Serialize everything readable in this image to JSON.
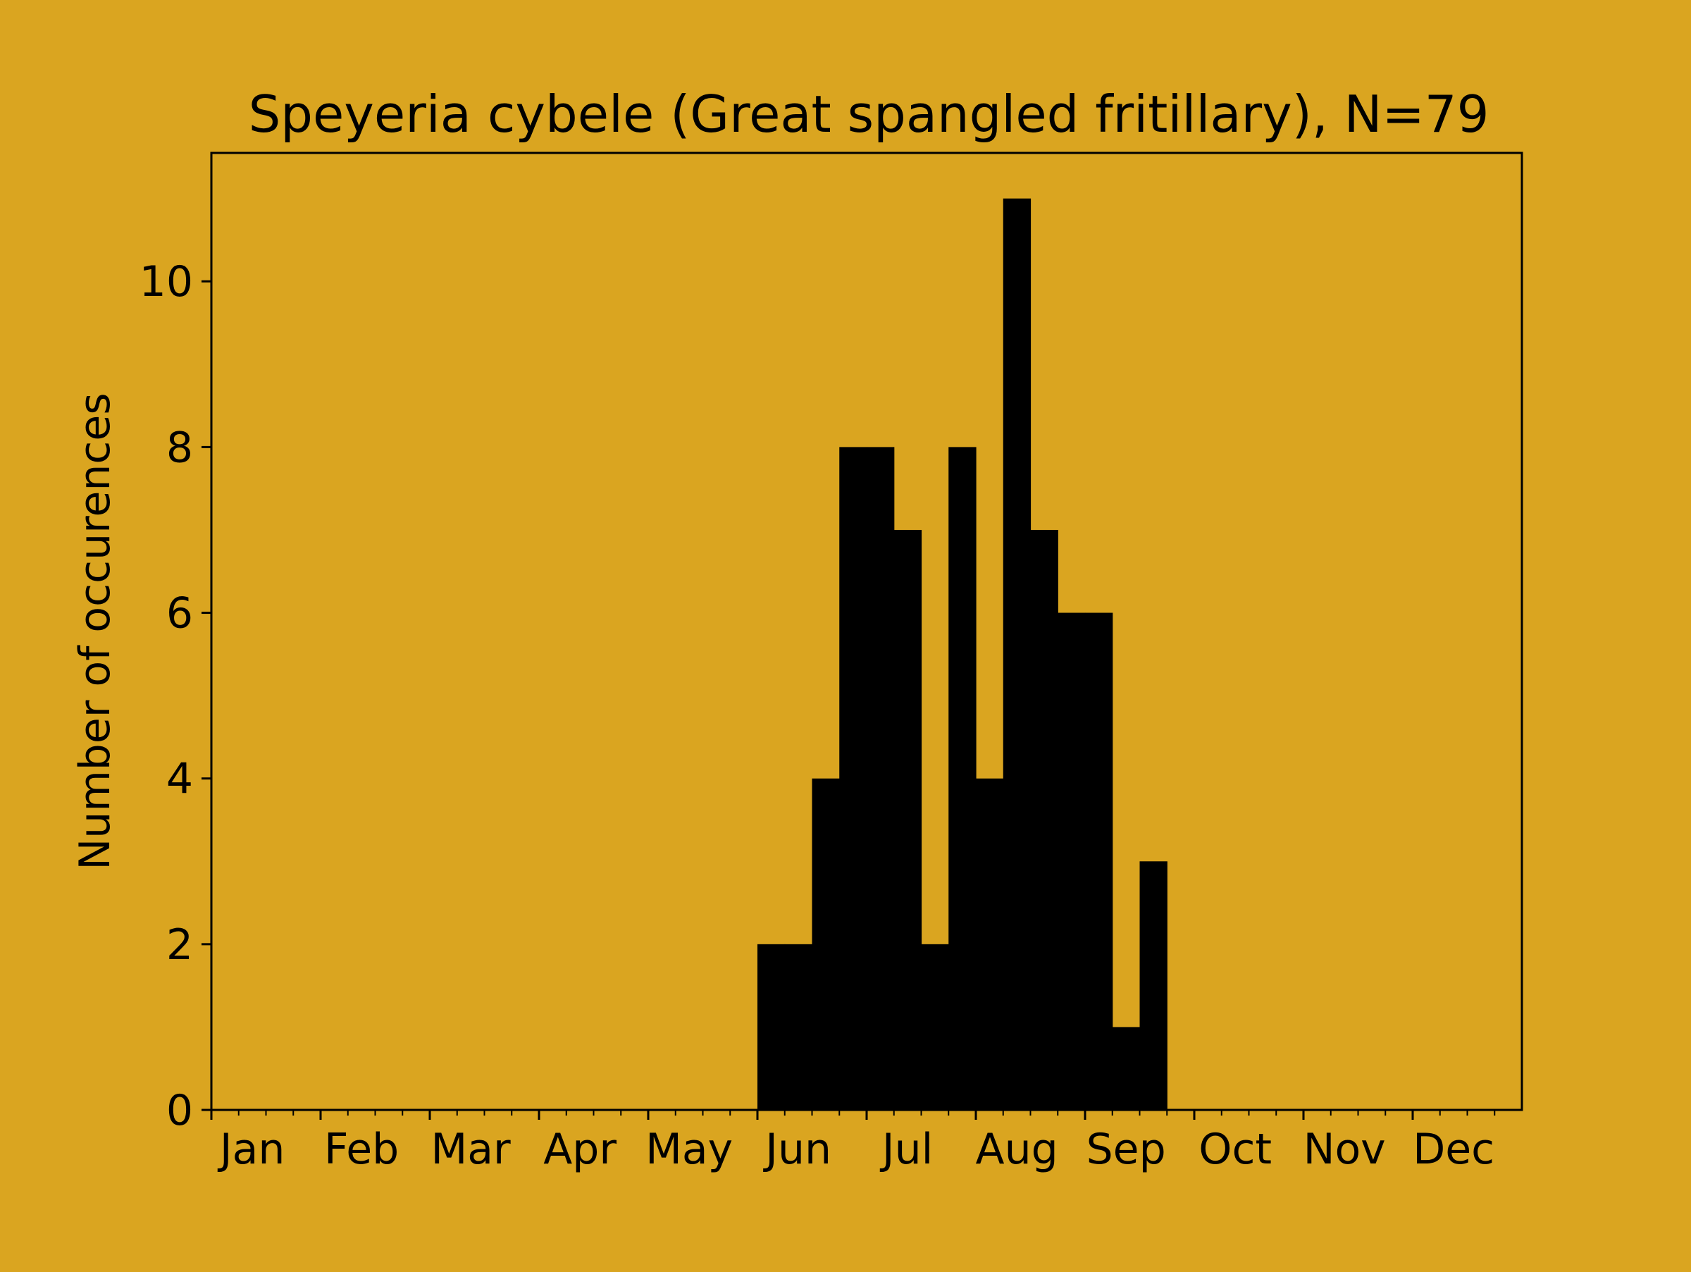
{
  "chart_data": {
    "type": "bar",
    "title": "Speyeria cybele (Great spangled fritillary), N=79",
    "xlabel": "",
    "ylabel": "Number of occurences",
    "ylim": [
      0,
      11.55
    ],
    "yticks": [
      0,
      2,
      4,
      6,
      8,
      10
    ],
    "xlim": [
      0,
      48
    ],
    "months": [
      "Jan",
      "Feb",
      "Mar",
      "Apr",
      "May",
      "Jun",
      "Jul",
      "Aug",
      "Sep",
      "Oct",
      "Nov",
      "Dec"
    ],
    "bin_unit": "quarter-month",
    "bins": [
      {
        "start": 20,
        "value": 2
      },
      {
        "start": 21,
        "value": 2
      },
      {
        "start": 22,
        "value": 4
      },
      {
        "start": 23,
        "value": 8
      },
      {
        "start": 24,
        "value": 8
      },
      {
        "start": 25,
        "value": 7
      },
      {
        "start": 26,
        "value": 2
      },
      {
        "start": 27,
        "value": 8
      },
      {
        "start": 28,
        "value": 4
      },
      {
        "start": 29,
        "value": 11
      },
      {
        "start": 30,
        "value": 7
      },
      {
        "start": 31,
        "value": 6
      },
      {
        "start": 32,
        "value": 6
      },
      {
        "start": 33,
        "value": 1
      },
      {
        "start": 34,
        "value": 3
      }
    ],
    "grid": false,
    "legend": "none",
    "colors": {
      "background": "#DAA520",
      "bars": "#000000",
      "axes": "#000000"
    }
  }
}
